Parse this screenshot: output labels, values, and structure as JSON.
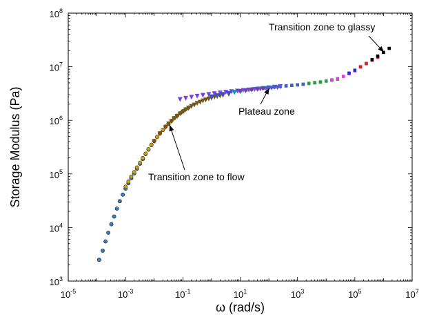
{
  "chart_data": {
    "type": "scatter",
    "xlabel": "ω (rad/s)",
    "ylabel": "Storage Modulus (Pa)",
    "xscale": "log",
    "yscale": "log",
    "xlim": [
      1e-05,
      10000000
    ],
    "ylim": [
      1000,
      100000000
    ],
    "grid": false,
    "legend": "none",
    "x_ticks": [
      {
        "value": 1e-05,
        "base": "10",
        "exp": "-5"
      },
      {
        "value": 0.001,
        "base": "10",
        "exp": "-3"
      },
      {
        "value": 0.1,
        "base": "10",
        "exp": "-1"
      },
      {
        "value": 10,
        "base": "10",
        "exp": "1"
      },
      {
        "value": 1000,
        "base": "10",
        "exp": "3"
      },
      {
        "value": 100000,
        "base": "10",
        "exp": "5"
      },
      {
        "value": 10000000,
        "base": "10",
        "exp": "7"
      }
    ],
    "y_ticks": [
      {
        "value": 1000,
        "base": "10",
        "exp": "3"
      },
      {
        "value": 10000,
        "base": "10",
        "exp": "4"
      },
      {
        "value": 100000,
        "base": "10",
        "exp": "5"
      },
      {
        "value": 1000000,
        "base": "10",
        "exp": "6"
      },
      {
        "value": 10000000,
        "base": "10",
        "exp": "7"
      },
      {
        "value": 100000000,
        "base": "10",
        "exp": "8"
      }
    ],
    "annotations": [
      {
        "text": "Transition zone to glassy",
        "arrow_to": [
          1000000,
          19000000
        ]
      },
      {
        "text": "Plateau zone",
        "arrow_to": [
          100,
          3900000
        ]
      },
      {
        "text": "Transition zone to flow",
        "arrow_to": [
          0.035,
          800000
        ]
      }
    ],
    "series": [
      {
        "marker": "circle",
        "color": "#3d7fb8",
        "edge": "#1c2e40",
        "x": [
          0.00012,
          0.00016,
          0.0002,
          0.00025,
          0.00032,
          0.0004,
          0.0005,
          0.00063,
          0.0008,
          0.001,
          0.00126,
          0.00158,
          0.002,
          0.0025,
          0.0032,
          0.004,
          0.005,
          0.0063,
          0.008,
          0.01,
          0.0126,
          0.0158,
          0.02,
          0.025,
          0.0316
        ],
        "y": [
          2500,
          3700,
          5500,
          8000,
          11500,
          16000,
          22500,
          31000,
          41000,
          53000,
          67000,
          83000,
          102000,
          125000,
          155000,
          190000,
          235000,
          285000,
          345000,
          410000,
          490000,
          570000,
          660000,
          760000,
          860000
        ]
      },
      {
        "marker": "circle",
        "color": "#c8a020",
        "edge": "#5a4a10",
        "x": [
          0.001,
          0.00126,
          0.00158,
          0.002,
          0.0025,
          0.0032,
          0.004,
          0.005,
          0.0063,
          0.008,
          0.01,
          0.0126,
          0.0158,
          0.02,
          0.025,
          0.0316,
          0.04,
          0.05,
          0.063,
          0.08,
          0.1,
          0.126,
          0.158
        ],
        "y": [
          58000,
          72000,
          89000,
          108000,
          132000,
          162000,
          198000,
          240000,
          290000,
          350000,
          415000,
          490000,
          575000,
          665000,
          765000,
          870000,
          980000,
          1100000,
          1220000,
          1350000,
          1480000,
          1610000,
          1740000
        ]
      },
      {
        "marker": "triangle",
        "color": "#8a4a10",
        "x": [
          0.01,
          0.0158,
          0.025,
          0.04,
          0.063,
          0.1,
          0.158,
          0.25,
          0.4,
          0.63,
          1,
          1.58,
          2.5,
          4
        ],
        "y": [
          400000,
          560000,
          740000,
          950000,
          1180000,
          1420000,
          1680000,
          1930000,
          2170000,
          2400000,
          2600000,
          2780000,
          2930000,
          3060000
        ]
      },
      {
        "marker": "triangle",
        "color": "#606020",
        "x": [
          0.0316,
          0.05,
          0.08,
          0.126,
          0.2,
          0.316,
          0.5,
          0.8,
          1.26,
          2
        ],
        "y": [
          860000,
          1080000,
          1320000,
          1570000,
          1820000,
          2070000,
          2300000,
          2510000,
          2700000,
          2860000
        ]
      },
      {
        "marker": "triangle",
        "color": "#7a40e0",
        "x": [
          0.08,
          0.126,
          0.2,
          0.316,
          0.5,
          0.8,
          1.26,
          2,
          3.16,
          5,
          8,
          12.6,
          20,
          31.6,
          50,
          80,
          126,
          200
        ],
        "y": [
          2450000,
          2580000,
          2700000,
          2820000,
          2930000,
          3040000,
          3140000,
          3240000,
          3340000,
          3430000,
          3520000,
          3610000,
          3690000,
          3770000,
          3850000,
          3930000,
          4010000,
          4090000
        ]
      },
      {
        "marker": "triangle",
        "color": "#3050e0",
        "x": [
          1,
          1.58,
          2.5,
          4,
          6.3,
          10,
          15.8,
          25,
          40,
          63,
          100,
          158,
          250
        ],
        "y": [
          2750000,
          2900000,
          3040000,
          3180000,
          3320000,
          3450000,
          3580000,
          3700000,
          3820000,
          3930000,
          4040000,
          4150000,
          4250000
        ]
      },
      {
        "marker": "triangle",
        "color": "#00a090",
        "x": [
          6.3,
          10,
          15.8,
          25,
          40,
          63,
          100,
          158
        ],
        "y": [
          3320000,
          3450000,
          3580000,
          3700000,
          3820000,
          3930000,
          4040000,
          4150000
        ]
      },
      {
        "marker": "square",
        "color": "#7a3aa0",
        "x": [
          10,
          15.8,
          25,
          40,
          63,
          100,
          158,
          250,
          400,
          630,
          1000,
          1580
        ],
        "y": [
          3550000,
          3660000,
          3770000,
          3870000,
          3980000,
          4080000,
          4180000,
          4280000,
          4380000,
          4480000,
          4580000,
          4690000
        ]
      },
      {
        "marker": "square",
        "color": "#4060d0",
        "x": [
          100,
          158,
          250,
          400,
          630,
          1000,
          1580,
          2500,
          4000,
          6300
        ],
        "y": [
          4100000,
          4200000,
          4300000,
          4400000,
          4500000,
          4600000,
          4720000,
          4850000,
          5000000,
          5160000
        ]
      },
      {
        "marker": "square",
        "color": "#2a9a3a",
        "x": [
          2500,
          4000,
          6300,
          10000,
          15800,
          25000
        ],
        "y": [
          4900000,
          5050000,
          5200000,
          5400000,
          5600000,
          5850000
        ]
      },
      {
        "marker": "square",
        "color": "#e040e0",
        "x": [
          15800,
          25000,
          40000,
          63000,
          100000
        ],
        "y": [
          5700000,
          6000000,
          6600000,
          7400000,
          8400000
        ]
      },
      {
        "marker": "square",
        "color": "#2030d0",
        "x": [
          63000,
          100000,
          158000,
          250000
        ],
        "y": [
          7600000,
          8600000,
          9900000,
          11400000
        ]
      },
      {
        "marker": "square",
        "color": "#e02020",
        "x": [
          158000,
          250000,
          400000,
          630000
        ],
        "y": [
          10000000,
          11500000,
          13200000,
          15000000
        ]
      },
      {
        "marker": "square",
        "color": "#000000",
        "x": [
          400000,
          630000,
          1000000,
          1580000
        ],
        "y": [
          13600000,
          15800000,
          18500000,
          22000000
        ]
      }
    ]
  }
}
